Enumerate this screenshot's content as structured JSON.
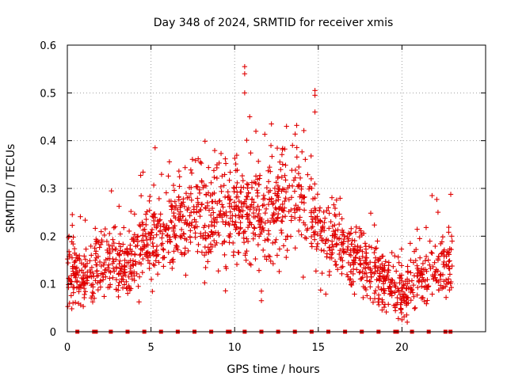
{
  "chart_data": {
    "type": "scatter",
    "title": "Day 348 of 2024, SRMTID for receiver xmis",
    "xlabel": "GPS time / hours",
    "ylabel": "SRMTID / TECUs",
    "xlim": [
      0,
      25
    ],
    "ylim": [
      0,
      0.6
    ],
    "x_ticks": [
      0,
      5,
      10,
      15,
      20
    ],
    "y_ticks": [
      0,
      0.1,
      0.2,
      0.3,
      0.4,
      0.5,
      0.6
    ],
    "x_tick_labels": [
      "0",
      "5",
      "10",
      "15",
      "20"
    ],
    "y_tick_labels": [
      "0",
      "0.1",
      "0.2",
      "0.3",
      "0.4",
      "0.5",
      "0.6"
    ],
    "grid": true,
    "marker": "+",
    "color": "#e00000",
    "trend_profile": {
      "x": [
        0,
        1,
        2,
        3,
        4,
        5,
        6,
        7,
        8,
        9,
        10,
        11,
        12,
        13,
        14,
        15,
        16,
        17,
        18,
        19,
        20,
        21,
        22,
        23
      ],
      "y": [
        0.12,
        0.11,
        0.15,
        0.14,
        0.16,
        0.19,
        0.22,
        0.24,
        0.25,
        0.24,
        0.25,
        0.24,
        0.25,
        0.26,
        0.29,
        0.22,
        0.18,
        0.17,
        0.13,
        0.1,
        0.08,
        0.1,
        0.13,
        0.14
      ]
    },
    "notable_points": [
      {
        "x": 10.6,
        "y": 0.555
      },
      {
        "x": 10.6,
        "y": 0.54
      },
      {
        "x": 10.6,
        "y": 0.5
      },
      {
        "x": 14.8,
        "y": 0.505
      },
      {
        "x": 14.8,
        "y": 0.495
      },
      {
        "x": 14.8,
        "y": 0.46
      },
      {
        "x": 10.9,
        "y": 0.45
      },
      {
        "x": 12.2,
        "y": 0.435
      },
      {
        "x": 13.1,
        "y": 0.43
      },
      {
        "x": 11.6,
        "y": 0.085
      },
      {
        "x": 11.6,
        "y": 0.065
      },
      {
        "x": 21.8,
        "y": 0.285
      },
      {
        "x": 20.0,
        "y": 0.025
      }
    ],
    "baseline_markers_x": [
      0.6,
      1.6,
      1.7,
      2.6,
      3.6,
      4.6,
      5.6,
      6.6,
      7.6,
      8.6,
      9.6,
      9.7,
      10.6,
      11.6,
      12.6,
      13.6,
      14.6,
      15.6,
      16.6,
      17.6,
      18.6,
      19.6,
      19.7,
      20.6,
      21.6,
      22.6,
      22.9
    ],
    "baseline_value": 0
  }
}
